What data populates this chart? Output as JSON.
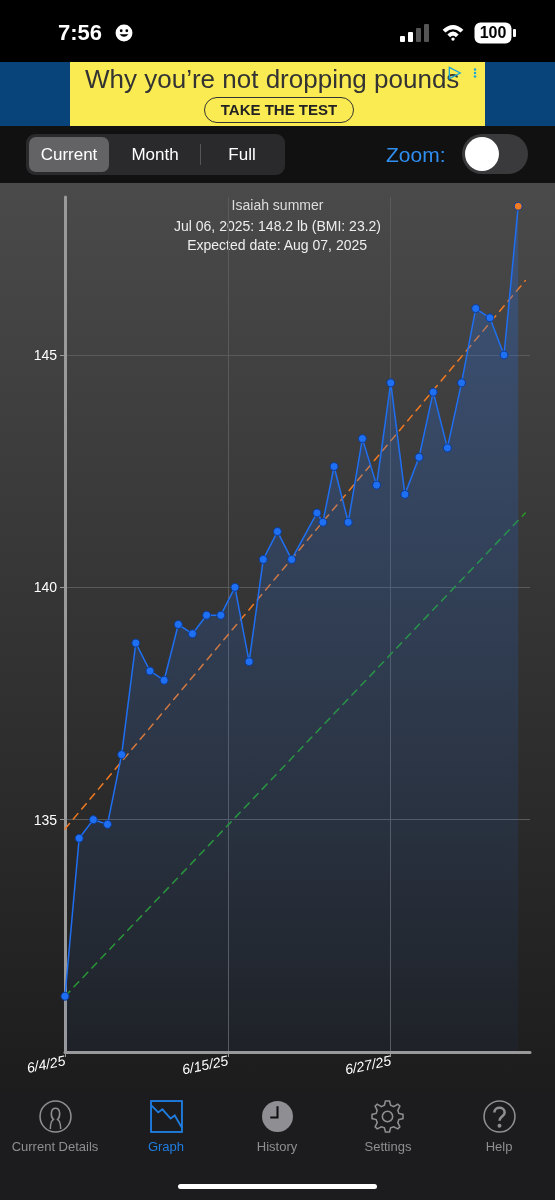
{
  "chart_data": {
    "type": "area",
    "title": "Isaiah summer",
    "annotations": [
      "Jul 06, 2025: 148.2 lb (BMI: 23.2)",
      "Expected date: Aug 07, 2025",
      "7:56",
      "100",
      "Why you’re not dropping pounds",
      "TAKE THE TEST",
      "Current",
      "Month",
      "Full",
      "Zoom:",
      "Current Details",
      "Graph",
      "History",
      "Settings",
      "Help"
    ],
    "xlim": [
      "2025-06-04",
      "2025-07-06T20:00"
    ],
    "xticks": [
      {
        "value": "2025-06-04",
        "label": "6/4/25"
      },
      {
        "value": "2025-06-15T12:00",
        "label": "6/15/25"
      },
      {
        "value": "2025-06-27",
        "label": "6/27/25"
      }
    ],
    "ylim": [
      130,
      148.4
    ],
    "yticks": [
      135,
      140,
      145
    ],
    "grid": true,
    "marker": "circle",
    "line_style": "solid",
    "series": [
      {
        "color": "#1f6ff2",
        "colors": [
          "#1f6ff2",
          "#1f6ff2",
          "#1f6ff2",
          "#1f6ff2",
          "#1f6ff2",
          "#1f6ff2",
          "#1f6ff2",
          "#1f6ff2",
          "#1f6ff2",
          "#1f6ff2",
          "#1f6ff2",
          "#1f6ff2",
          "#1f6ff2",
          "#1f6ff2",
          "#1f6ff2",
          "#1f6ff2",
          "#1f6ff2",
          "#1f6ff2",
          "#1f6ff2",
          "#1f6ff2",
          "#1f6ff2",
          "#1f6ff2",
          "#1f6ff2",
          "#1f6ff2",
          "#1f6ff2",
          "#1f6ff2",
          "#1f6ff2",
          "#1f6ff2",
          "#1f6ff2",
          "#1f6ff2",
          "#1f6ff2",
          "#1f6ff2",
          "#f07a22"
        ],
        "x": [
          "2025-06-04",
          "2025-06-05",
          "2025-06-06",
          "2025-06-07",
          "2025-06-08",
          "2025-06-09",
          "2025-06-10",
          "2025-06-11",
          "2025-06-12",
          "2025-06-13",
          "2025-06-14",
          "2025-06-15",
          "2025-06-16",
          "2025-06-17",
          "2025-06-18",
          "2025-06-19",
          "2025-06-20",
          "2025-06-21T19:00",
          "2025-06-22T05:00",
          "2025-06-23",
          "2025-06-24",
          "2025-06-25",
          "2025-06-26",
          "2025-06-27",
          "2025-06-28",
          "2025-06-29",
          "2025-06-30",
          "2025-07-01",
          "2025-07-02",
          "2025-07-03",
          "2025-07-04",
          "2025-07-05",
          "2025-07-06"
        ],
        "values": [
          131.2,
          134.6,
          135.0,
          134.9,
          136.4,
          138.8,
          138.2,
          138.0,
          139.2,
          139.0,
          139.4,
          139.4,
          140.0,
          138.4,
          140.6,
          141.2,
          140.6,
          141.6,
          141.4,
          142.6,
          141.4,
          143.2,
          142.2,
          144.4,
          142.0,
          142.8,
          144.2,
          143.0,
          144.4,
          146.0,
          145.8,
          145.0,
          148.2
        ]
      },
      {
        "type": "line",
        "color": "#f07a22",
        "line_style": "dashed",
        "marker": "none",
        "x": [
          "2025-06-04",
          "2025-07-06T12:00"
        ],
        "values": [
          134.8,
          146.6
        ]
      },
      {
        "type": "line",
        "color": "#2a9a2a",
        "line_style": "dashed",
        "marker": "none",
        "x": [
          "2025-06-04",
          "2025-07-06T12:00"
        ],
        "values": [
          131.2,
          141.6
        ]
      }
    ]
  }
}
